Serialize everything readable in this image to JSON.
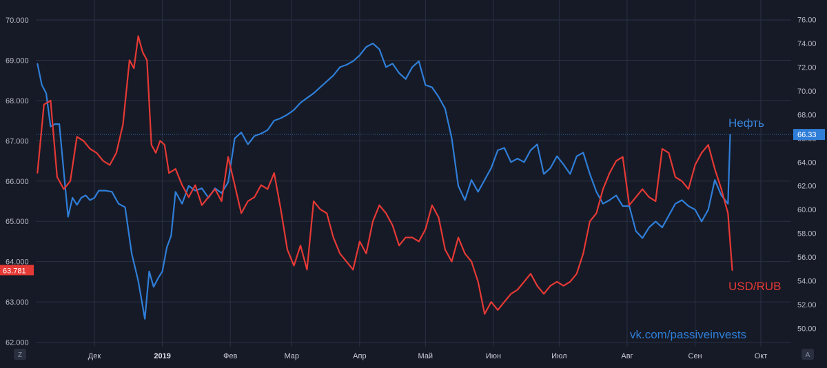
{
  "chart_data": {
    "type": "line",
    "x_ticks": [
      "Дек",
      "2019",
      "Фев",
      "Мар",
      "Апр",
      "Май",
      "Июн",
      "Июл",
      "Авг",
      "Сен",
      "Окт"
    ],
    "left_axis": {
      "ticks": [
        "62.000",
        "63.000",
        "64.000",
        "65.000",
        "66.000",
        "67.000",
        "68.000",
        "69.000",
        "70.000"
      ],
      "range": [
        62.0,
        70.0
      ],
      "current_label": "63.781",
      "current_value": 63.781,
      "current_color": "#e53935"
    },
    "right_axis": {
      "ticks": [
        "50.00",
        "52.00",
        "54.00",
        "56.00",
        "58.00",
        "60.00",
        "62.00",
        "64.00",
        "66.00",
        "68.00",
        "70.00",
        "72.00",
        "74.00",
        "76.00"
      ],
      "range": [
        50.0,
        76.0
      ],
      "current_label": "66.33",
      "current_value": 66.33,
      "current_color": "#2f7ed8"
    },
    "series": [
      {
        "name": "Нефть",
        "axis": "right",
        "color": "#2f7ed8",
        "x": [
          "2018-11-05",
          "2018-11-07",
          "2018-11-09",
          "2018-11-11",
          "2018-11-13",
          "2018-11-15",
          "2018-11-17",
          "2018-11-19",
          "2018-11-21",
          "2018-11-23",
          "2018-11-25",
          "2018-11-27",
          "2018-11-29",
          "2018-12-01",
          "2018-12-03",
          "2018-12-06",
          "2018-12-09",
          "2018-12-12",
          "2018-12-15",
          "2018-12-18",
          "2018-12-21",
          "2018-12-24",
          "2018-12-26",
          "2018-12-28",
          "2018-12-30",
          "2019-01-01",
          "2019-01-03",
          "2019-01-05",
          "2019-01-07",
          "2019-01-10",
          "2019-01-13",
          "2019-01-16",
          "2019-01-19",
          "2019-01-22",
          "2019-01-25",
          "2019-01-28",
          "2019-01-31",
          "2019-02-03",
          "2019-02-06",
          "2019-02-09",
          "2019-02-12",
          "2019-02-15",
          "2019-02-18",
          "2019-02-21",
          "2019-02-24",
          "2019-02-27",
          "2019-03-02",
          "2019-03-05",
          "2019-03-08",
          "2019-03-11",
          "2019-03-14",
          "2019-03-17",
          "2019-03-20",
          "2019-03-23",
          "2019-03-26",
          "2019-03-29",
          "2019-04-01",
          "2019-04-04",
          "2019-04-07",
          "2019-04-10",
          "2019-04-13",
          "2019-04-16",
          "2019-04-19",
          "2019-04-22",
          "2019-04-25",
          "2019-04-28",
          "2019-05-01",
          "2019-05-04",
          "2019-05-07",
          "2019-05-10",
          "2019-05-13",
          "2019-05-16",
          "2019-05-19",
          "2019-05-22",
          "2019-05-25",
          "2019-05-28",
          "2019-05-31",
          "2019-06-03",
          "2019-06-06",
          "2019-06-09",
          "2019-06-12",
          "2019-06-15",
          "2019-06-18",
          "2019-06-21",
          "2019-06-24",
          "2019-06-27",
          "2019-06-30",
          "2019-07-03",
          "2019-07-06",
          "2019-07-09",
          "2019-07-12",
          "2019-07-15",
          "2019-07-18",
          "2019-07-21",
          "2019-07-24",
          "2019-07-27",
          "2019-07-30",
          "2019-08-02",
          "2019-08-05",
          "2019-08-08",
          "2019-08-11",
          "2019-08-14",
          "2019-08-17",
          "2019-08-20",
          "2019-08-23",
          "2019-08-26",
          "2019-08-29",
          "2019-09-01",
          "2019-09-04",
          "2019-09-07",
          "2019-09-10",
          "2019-09-13",
          "2019-09-16",
          "2019-09-17"
        ],
        "values": [
          72.3,
          70.5,
          69.8,
          67.0,
          67.2,
          67.2,
          63.2,
          59.4,
          61.0,
          60.4,
          61.0,
          61.2,
          60.8,
          61.0,
          61.6,
          61.6,
          61.5,
          60.5,
          60.2,
          56.3,
          54.0,
          50.8,
          54.8,
          53.5,
          54.2,
          54.8,
          56.8,
          57.8,
          61.5,
          60.5,
          62.0,
          61.6,
          61.8,
          61.0,
          61.8,
          61.4,
          62.3,
          66.0,
          66.5,
          65.5,
          66.2,
          66.4,
          66.7,
          67.5,
          67.7,
          68.0,
          68.4,
          69.0,
          69.4,
          69.8,
          70.3,
          70.8,
          71.3,
          72.0,
          72.2,
          72.5,
          73.0,
          73.7,
          74.0,
          73.5,
          72.0,
          72.3,
          71.5,
          71.0,
          72.0,
          72.5,
          70.5,
          70.3,
          69.5,
          68.5,
          66.0,
          62.0,
          60.8,
          62.5,
          61.5,
          62.5,
          63.5,
          65.0,
          65.2,
          64.0,
          64.3,
          64.0,
          65.0,
          65.5,
          63.0,
          63.5,
          64.5,
          63.8,
          63.0,
          64.5,
          64.8,
          63.0,
          61.5,
          60.5,
          60.8,
          61.2,
          60.3,
          60.3,
          58.2,
          57.6,
          58.5,
          59.0,
          58.5,
          59.5,
          60.5,
          60.8,
          60.3,
          60.0,
          59.0,
          60.0,
          62.5,
          61.2,
          60.5,
          66.33
        ]
      },
      {
        "name": "USD/RUB",
        "axis": "left",
        "color": "#e53935",
        "x": [
          "2018-11-05",
          "2018-11-08",
          "2018-11-11",
          "2018-11-14",
          "2018-11-17",
          "2018-11-20",
          "2018-11-23",
          "2018-11-26",
          "2018-11-29",
          "2018-12-02",
          "2018-12-05",
          "2018-12-08",
          "2018-12-11",
          "2018-12-14",
          "2018-12-17",
          "2018-12-19",
          "2018-12-21",
          "2018-12-23",
          "2018-12-25",
          "2018-12-27",
          "2018-12-29",
          "2018-12-31",
          "2019-01-02",
          "2019-01-04",
          "2019-01-07",
          "2019-01-10",
          "2019-01-13",
          "2019-01-16",
          "2019-01-19",
          "2019-01-22",
          "2019-01-25",
          "2019-01-28",
          "2019-01-31",
          "2019-02-03",
          "2019-02-06",
          "2019-02-09",
          "2019-02-12",
          "2019-02-15",
          "2019-02-18",
          "2019-02-21",
          "2019-02-24",
          "2019-02-27",
          "2019-03-02",
          "2019-03-05",
          "2019-03-08",
          "2019-03-11",
          "2019-03-14",
          "2019-03-17",
          "2019-03-20",
          "2019-03-23",
          "2019-03-26",
          "2019-03-29",
          "2019-04-01",
          "2019-04-04",
          "2019-04-07",
          "2019-04-10",
          "2019-04-13",
          "2019-04-16",
          "2019-04-19",
          "2019-04-22",
          "2019-04-25",
          "2019-04-28",
          "2019-05-01",
          "2019-05-04",
          "2019-05-07",
          "2019-05-10",
          "2019-05-13",
          "2019-05-16",
          "2019-05-19",
          "2019-05-22",
          "2019-05-25",
          "2019-05-28",
          "2019-05-31",
          "2019-06-03",
          "2019-06-06",
          "2019-06-09",
          "2019-06-12",
          "2019-06-15",
          "2019-06-18",
          "2019-06-21",
          "2019-06-24",
          "2019-06-27",
          "2019-06-30",
          "2019-07-03",
          "2019-07-06",
          "2019-07-09",
          "2019-07-12",
          "2019-07-15",
          "2019-07-18",
          "2019-07-21",
          "2019-07-24",
          "2019-07-27",
          "2019-07-30",
          "2019-08-02",
          "2019-08-05",
          "2019-08-08",
          "2019-08-11",
          "2019-08-14",
          "2019-08-17",
          "2019-08-20",
          "2019-08-23",
          "2019-08-26",
          "2019-08-29",
          "2019-09-01",
          "2019-09-04",
          "2019-09-07",
          "2019-09-10",
          "2019-09-13",
          "2019-09-16",
          "2019-09-18"
        ],
        "values": [
          66.2,
          67.9,
          68.0,
          66.1,
          65.8,
          66.0,
          67.1,
          67.0,
          66.8,
          66.7,
          66.5,
          66.4,
          66.7,
          67.4,
          69.0,
          68.8,
          69.6,
          69.2,
          69.0,
          66.9,
          66.7,
          67.0,
          66.9,
          66.2,
          66.3,
          65.9,
          65.6,
          65.9,
          65.4,
          65.6,
          65.8,
          65.5,
          66.6,
          65.9,
          65.2,
          65.5,
          65.6,
          65.9,
          65.8,
          66.2,
          65.3,
          64.3,
          63.9,
          64.4,
          63.8,
          65.5,
          65.3,
          65.2,
          64.6,
          64.2,
          64.0,
          63.8,
          64.5,
          64.2,
          65.0,
          65.4,
          65.2,
          64.9,
          64.4,
          64.6,
          64.6,
          64.5,
          64.8,
          65.4,
          65.1,
          64.3,
          64.0,
          64.6,
          64.2,
          64.0,
          63.5,
          62.7,
          63.0,
          62.8,
          63.0,
          63.2,
          63.3,
          63.5,
          63.7,
          63.4,
          63.2,
          63.4,
          63.5,
          63.4,
          63.5,
          63.7,
          64.2,
          65.0,
          65.2,
          65.8,
          66.2,
          66.5,
          66.6,
          65.4,
          65.6,
          65.8,
          65.6,
          65.5,
          66.8,
          66.7,
          66.1,
          66.0,
          65.8,
          66.4,
          66.7,
          66.9,
          66.3,
          65.8,
          65.2,
          63.781
        ]
      }
    ],
    "annotations": {
      "oil_label": "Нефть",
      "usd_label": "USD/RUB",
      "watermark": "vk.com/passiveinvests"
    },
    "corner_left_icon": "Z",
    "corner_right_icon": "A"
  }
}
